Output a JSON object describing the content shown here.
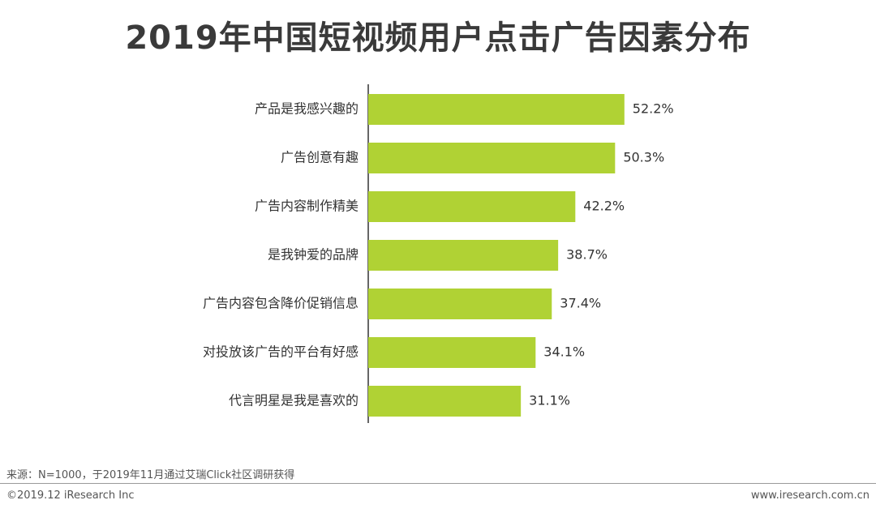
{
  "chart_data": {
    "type": "bar",
    "orientation": "horizontal",
    "title": "2019年中国短视频用户点击广告因素分布",
    "categories": [
      "产品是我感兴趣的",
      "广告创意有趣",
      "广告内容制作精美",
      "是我钟爱的品牌",
      "广告内容包含降价促销信息",
      "对投放该广告的平台有好感",
      "代言明星是我是喜欢的"
    ],
    "values": [
      52.2,
      50.3,
      42.2,
      38.7,
      37.4,
      34.1,
      31.1
    ],
    "value_labels": [
      "52.2%",
      "50.3%",
      "42.2%",
      "38.7%",
      "37.4%",
      "34.1%",
      "31.1%"
    ],
    "xlim": [
      0,
      100
    ],
    "grid": false,
    "bar_color": "#b0d234"
  },
  "footer": {
    "source": "来源：N=1000，于2019年11月通过艾瑞Click社区调研获得",
    "copyright": "©2019.12 iResearch Inc",
    "website": "www.iresearch.com.cn"
  }
}
